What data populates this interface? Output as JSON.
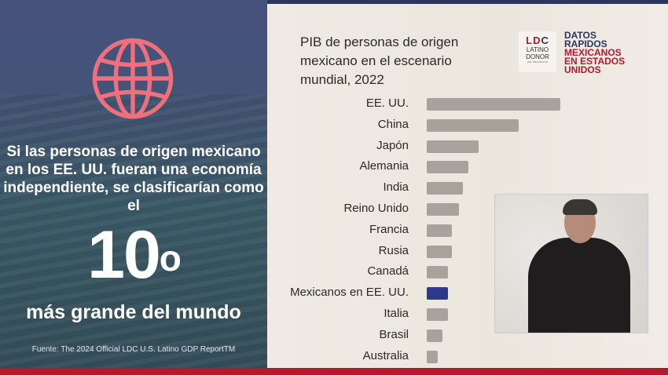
{
  "left_panel": {
    "icon": "globe-icon",
    "lead_text": "Si las personas de origen mexicano en los EE. UU. fueran una economía independiente, se clasificarían como el",
    "rank_number": "10",
    "rank_suffix": "o",
    "tail_text": "más grande del mundo",
    "source": "Fuente: The 2024 Official LDC U.S. Latino GDP ReportTM"
  },
  "branding": {
    "logo_text": "LATINO DONOR",
    "logo_subtext": "DEL LIBOCINCTIR",
    "datos_line1": "DATOS",
    "datos_line2": "RAPIDOS",
    "datos_line3": "MEXICANOS",
    "datos_line4": "EN ESTADOS",
    "datos_line5": "UNIDOS"
  },
  "colors": {
    "navy": "#2c3560",
    "red": "#b3192e",
    "bar_gray": "#a8a29c",
    "highlight": "#2c3a8a",
    "globe": "#ef6f7c"
  },
  "chart_data": {
    "type": "bar",
    "orientation": "horizontal",
    "title": "PIB de personas de origen mexicano en el escenario mundial, 2022",
    "categories": [
      "EE. UU.",
      "China",
      "Japón",
      "Alemania",
      "India",
      "Reino Unido",
      "Francia",
      "Rusia",
      "Canadá",
      "Mexicanos en EE. UU.",
      "Italia",
      "Brasil",
      "Australia"
    ],
    "values": [
      1.0,
      0.69,
      0.39,
      0.31,
      0.27,
      0.24,
      0.19,
      0.19,
      0.16,
      0.16,
      0.16,
      0.12,
      0.08
    ],
    "value_scale": "relative to EE. UU. (no axis printed)",
    "highlight_category": "Mexicanos en EE. UU.",
    "grid": false,
    "xlabel": "",
    "ylabel": ""
  }
}
